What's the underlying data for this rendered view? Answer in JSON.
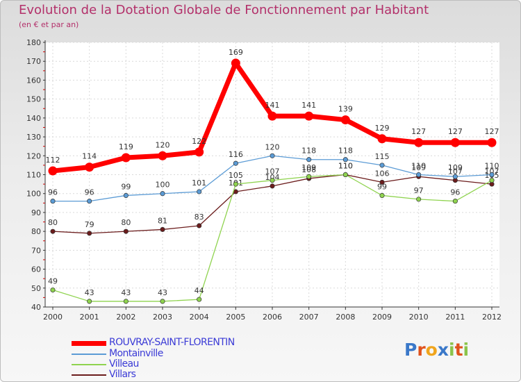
{
  "title": "Evolution de la Dotation Globale de Fonctionnement par Habitant",
  "subtitle": "(en € et par an)",
  "chart_data": {
    "type": "line",
    "title": "Evolution de la Dotation Globale de Fonctionnement par Habitant",
    "subtitle": "(en € et par an)",
    "x": [
      2000,
      2001,
      2002,
      2003,
      2004,
      2005,
      2006,
      2007,
      2008,
      2009,
      2010,
      2011,
      2012
    ],
    "ylim": [
      40,
      180
    ],
    "yticks": [
      40,
      50,
      60,
      70,
      80,
      90,
      100,
      110,
      120,
      130,
      140,
      150,
      160,
      170,
      180
    ],
    "grid": true,
    "legend_position": "bottom-left",
    "series": [
      {
        "name": "ROUVRAY-SAINT-FLORENTIN",
        "color": "#ff0000",
        "values": [
          112,
          114,
          119,
          120,
          122,
          169,
          141,
          141,
          139,
          129,
          127,
          127,
          127
        ]
      },
      {
        "name": "Montainville",
        "color": "#5b9bd5",
        "values": [
          96,
          96,
          99,
          100,
          101,
          116,
          120,
          118,
          118,
          115,
          110,
          109,
          110
        ]
      },
      {
        "name": "Villeau",
        "color": "#8fd34f",
        "values": [
          49,
          43,
          43,
          43,
          44,
          105,
          107,
          109,
          110,
          99,
          97,
          96,
          107
        ]
      },
      {
        "name": "Villars",
        "color": "#6b1c1c",
        "values": [
          80,
          79,
          80,
          81,
          83,
          101,
          104,
          108,
          110,
          106,
          109,
          107,
          105
        ]
      }
    ]
  },
  "logo": {
    "letters": [
      "P",
      "r",
      "o",
      "x",
      "i",
      "t",
      "i"
    ],
    "colors": [
      "#3a78c9",
      "#e0521c",
      "#f0a51d",
      "#3a78c9",
      "#8bc34a",
      "#e0521c",
      "#8bc34a"
    ]
  }
}
